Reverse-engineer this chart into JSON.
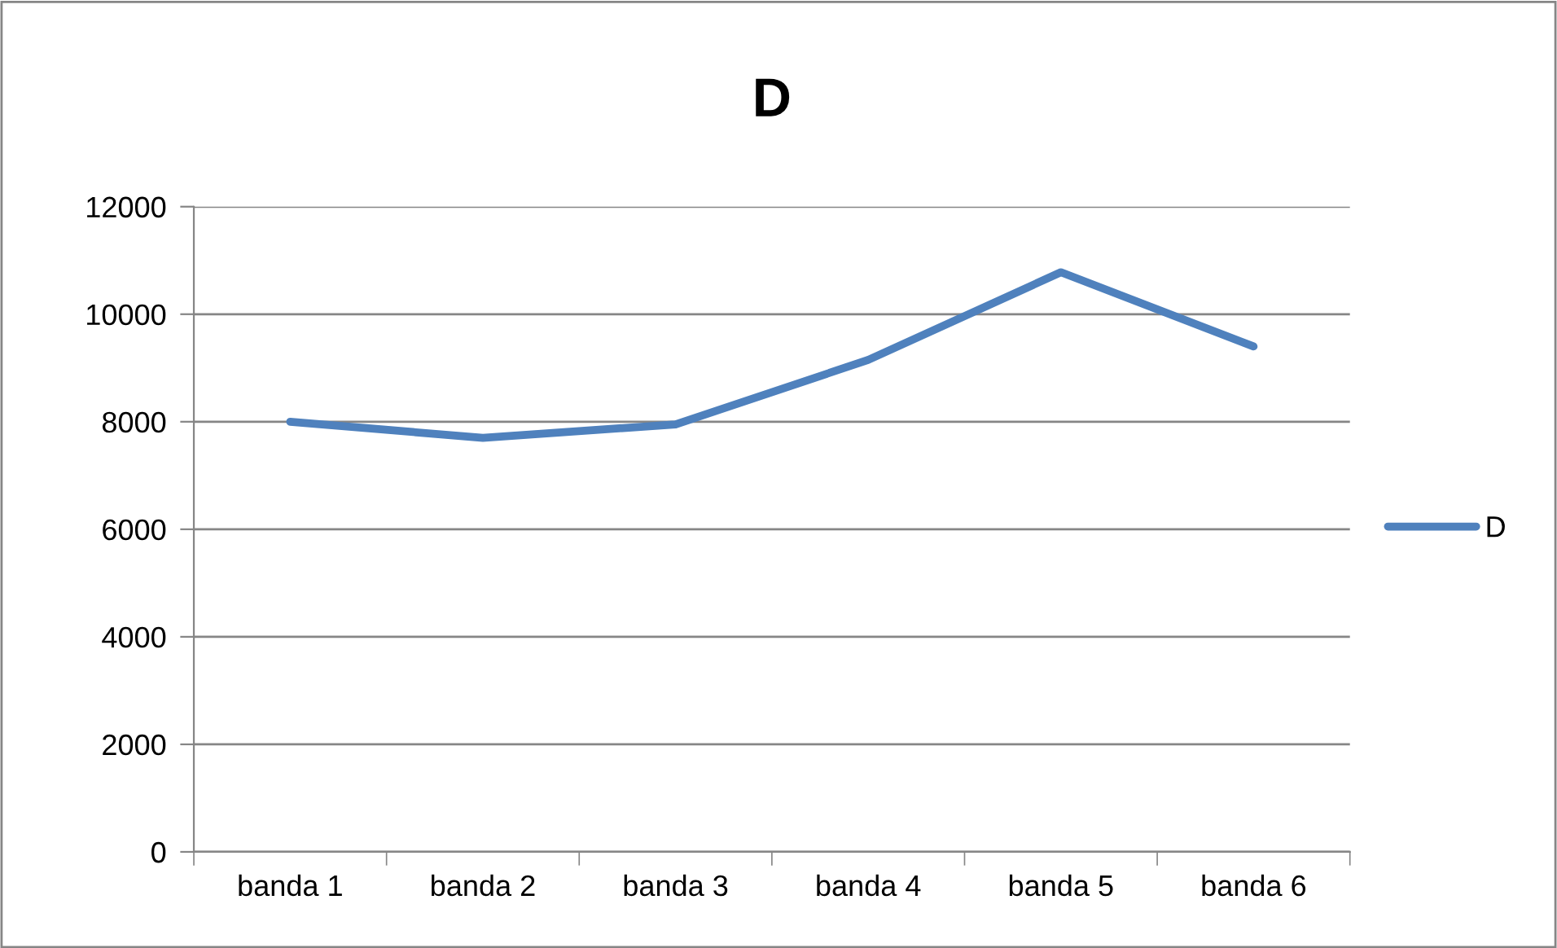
{
  "chart_data": {
    "type": "line",
    "title": "D",
    "categories": [
      "banda 1",
      "banda 2",
      "banda 3",
      "banda 4",
      "banda 5",
      "banda 6"
    ],
    "series": [
      {
        "name": "D",
        "color": "#4f81bd",
        "values": [
          8000,
          7700,
          7950,
          9150,
          10780,
          9400
        ]
      }
    ],
    "ylim": [
      0,
      12000
    ],
    "yticks": [
      0,
      2000,
      4000,
      6000,
      8000,
      10000,
      12000
    ],
    "grid": "y",
    "legend": "right",
    "marker": "none",
    "line_style": "solid"
  }
}
